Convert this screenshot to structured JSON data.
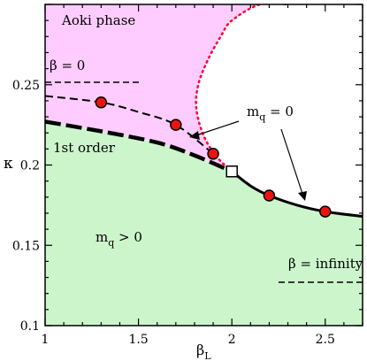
{
  "chart_data": {
    "type": "line",
    "xlabel_main": "β",
    "xlabel_sub": "L",
    "ylabel": "κ",
    "xlim": [
      1.0,
      2.7
    ],
    "ylim": [
      0.1,
      0.3
    ],
    "x_ticks": [
      1,
      1.5,
      2,
      2.5
    ],
    "x_tick_labels": [
      "1",
      "1.5",
      "2",
      "2.5"
    ],
    "y_ticks": [
      0.1,
      0.15,
      0.2,
      0.25
    ],
    "y_tick_labels": [
      "0.1",
      "0.15",
      "0.2",
      "0.25"
    ],
    "regions": [
      {
        "label": "Aoki phase",
        "color": "#ffccff"
      },
      {
        "label": "1st order",
        "color": "#ccf5cc"
      },
      {
        "label_main": "m",
        "label_sub": "q",
        "label_rest": " > 0",
        "color": "#ccf5cc"
      }
    ],
    "annotations": [
      {
        "label": "β = 0"
      },
      {
        "label_main": "m",
        "label_sub": "q",
        "label_rest": " = 0"
      },
      {
        "label": "β = infinity"
      }
    ],
    "series": [
      {
        "style": "dashed",
        "x": [
          1.0,
          1.3,
          1.5,
          1.7,
          1.9
        ],
        "y": [
          0.243,
          0.239,
          0.233,
          0.225,
          0.207
        ]
      },
      {
        "style": "thick-dashed",
        "x": [
          1.0,
          1.3,
          1.6,
          1.8,
          2.0
        ],
        "y": [
          0.227,
          0.221,
          0.214,
          0.206,
          0.196
        ]
      },
      {
        "style": "solid",
        "x": [
          2.0,
          2.1,
          2.2,
          2.35,
          2.5,
          2.7
        ],
        "y": [
          0.196,
          0.187,
          0.181,
          0.175,
          0.171,
          0.168
        ]
      },
      {
        "style": "dotted",
        "color": "#ff0033",
        "x": [
          2.0,
          1.92,
          1.85,
          1.81,
          1.82,
          1.87,
          1.94,
          2.0,
          2.15,
          2.3
        ],
        "y": [
          0.196,
          0.205,
          0.218,
          0.235,
          0.25,
          0.265,
          0.28,
          0.29,
          0.3,
          0.3
        ]
      },
      {
        "style": "markers-circle",
        "color": "#ee1111",
        "x": [
          1.3,
          1.7,
          1.9,
          2.2,
          2.5
        ],
        "y": [
          0.239,
          0.225,
          0.207,
          0.181,
          0.171
        ]
      },
      {
        "style": "marker-square",
        "x": [
          2.0
        ],
        "y": [
          0.196
        ]
      }
    ]
  }
}
